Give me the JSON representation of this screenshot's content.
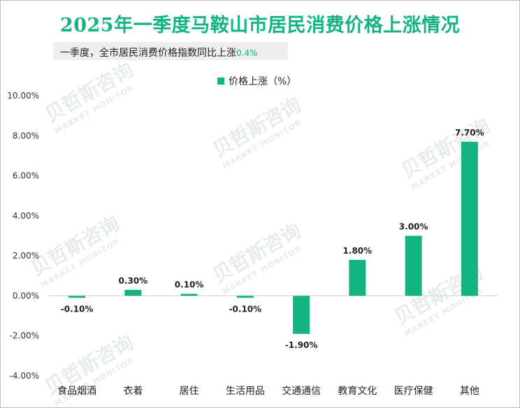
{
  "title": "2025年一季度马鞍山市居民消费价格上涨情况",
  "subtitle": {
    "text": "一季度，全市居民消费价格指数同比上涨",
    "value": "0.4%"
  },
  "watermark": {
    "cn": "贝哲斯咨询",
    "en": "MARKET MONITOR"
  },
  "colors": {
    "accent": "#13b383"
  },
  "chart_data": {
    "type": "bar",
    "categories": [
      "食品烟酒",
      "衣着",
      "居住",
      "生活用品",
      "交通通信",
      "教育文化",
      "医疗保健",
      "其他"
    ],
    "series": [
      {
        "name": "价格上涨（%）",
        "values": [
          -0.1,
          0.3,
          0.1,
          -0.1,
          -1.9,
          1.8,
          3.0,
          7.7
        ],
        "labels": [
          "-0.10%",
          "0.30%",
          "0.10%",
          "-0.10%",
          "-1.90%",
          "1.80%",
          "3.00%",
          "7.70%"
        ]
      }
    ],
    "ylim": [
      -4,
      10
    ],
    "yticks": [
      10,
      8,
      6,
      4,
      2,
      0,
      -2,
      -4
    ],
    "ytick_labels": [
      "10.00%",
      "8.00%",
      "6.00%",
      "4.00%",
      "2.00%",
      "0.00%",
      "-2.00%",
      "-4.00%"
    ],
    "grid": false,
    "legend": "top-center"
  }
}
